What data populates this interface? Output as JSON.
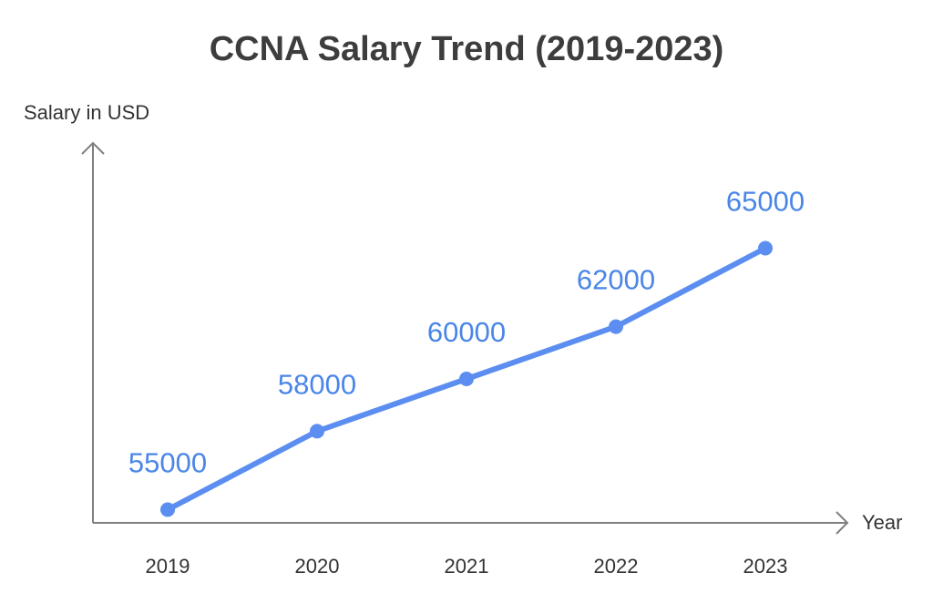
{
  "chart_data": {
    "type": "line",
    "title": "CCNA Salary Trend (2019-2023)",
    "xlabel": "Year",
    "ylabel": "Salary in USD",
    "categories": [
      "2019",
      "2020",
      "2021",
      "2022",
      "2023"
    ],
    "series": [
      {
        "values": [
          55000,
          58000,
          60000,
          62000,
          65000
        ]
      }
    ],
    "ylim": [
      50000,
      70000
    ],
    "grid": false,
    "legend": "none",
    "colors": {
      "line": "#5b8ef0",
      "label": "#4a86e8",
      "axis": "#7f7f7f",
      "text": "#333333"
    }
  }
}
